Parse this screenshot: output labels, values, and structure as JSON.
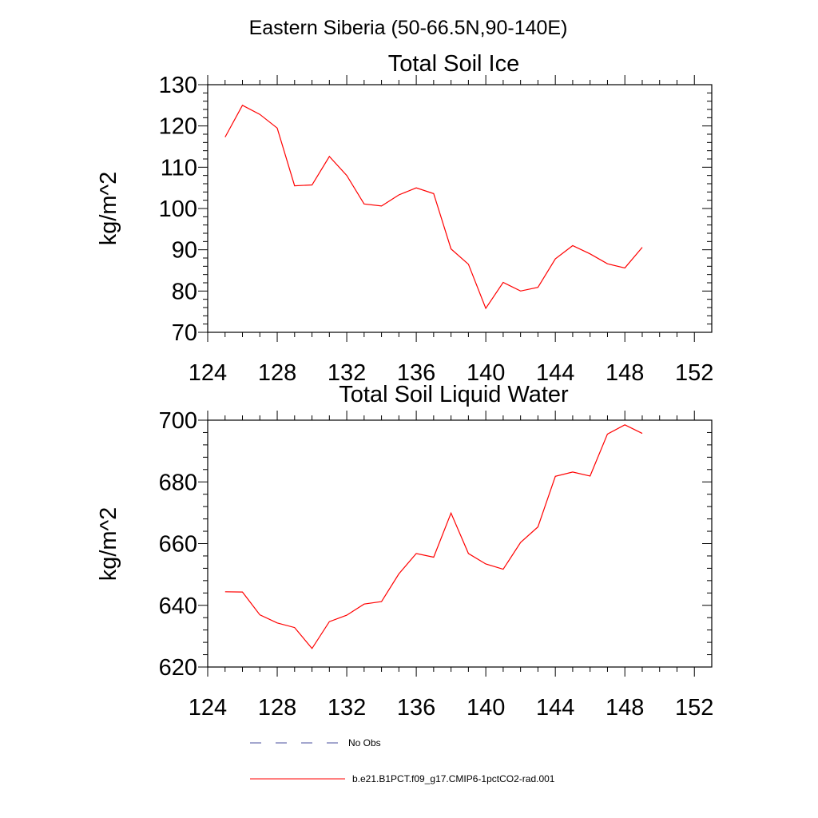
{
  "figure": {
    "suptitle": "Eastern Siberia (50-66.5N,90-140E)"
  },
  "chart_data": [
    {
      "type": "line",
      "title": "Total Soil Ice",
      "xlabel": "",
      "ylabel": "kg/m^2",
      "xlim": [
        124,
        153
      ],
      "ylim": [
        70,
        130
      ],
      "xticks": [
        124,
        128,
        132,
        136,
        140,
        144,
        148,
        152
      ],
      "yticks": [
        70,
        80,
        90,
        100,
        110,
        120,
        130
      ],
      "grid": false,
      "series": [
        {
          "name": "b.e21.B1PCT.f09_g17.CMIP6-1pctCO2-rad.001",
          "color": "#ff0000",
          "x": [
            125,
            126,
            127,
            128,
            129,
            130,
            131,
            132,
            133,
            134,
            135,
            136,
            137,
            138,
            139,
            140,
            141,
            142,
            143,
            144,
            145,
            146,
            147,
            148,
            149
          ],
          "values": [
            117.3,
            125.0,
            122.8,
            119.5,
            105.5,
            105.7,
            112.6,
            108.0,
            101.1,
            100.6,
            103.3,
            105.0,
            103.6,
            90.2,
            86.5,
            75.8,
            82.1,
            80.0,
            80.9,
            87.8,
            91.0,
            89.0,
            86.6,
            85.6,
            90.6
          ]
        }
      ]
    },
    {
      "type": "line",
      "title": "Total Soil Liquid Water",
      "xlabel": "",
      "ylabel": "kg/m^2",
      "xlim": [
        124,
        153
      ],
      "ylim": [
        620,
        700
      ],
      "xticks": [
        124,
        128,
        132,
        136,
        140,
        144,
        148,
        152
      ],
      "yticks": [
        620,
        640,
        660,
        680,
        700
      ],
      "grid": false,
      "series": [
        {
          "name": "b.e21.B1PCT.f09_g17.CMIP6-1pctCO2-rad.001",
          "color": "#ff0000",
          "x": [
            125,
            126,
            127,
            128,
            129,
            130,
            131,
            132,
            133,
            134,
            135,
            136,
            137,
            138,
            139,
            140,
            141,
            142,
            143,
            144,
            145,
            146,
            147,
            148,
            149
          ],
          "values": [
            644.4,
            644.3,
            636.9,
            634.3,
            632.8,
            626.0,
            634.7,
            636.8,
            640.4,
            641.2,
            650.2,
            656.8,
            655.6,
            669.9,
            656.8,
            653.4,
            651.7,
            660.4,
            665.4,
            681.8,
            683.2,
            681.9,
            695.5,
            698.5,
            695.7
          ]
        }
      ]
    }
  ],
  "legend": {
    "placement": "bottom",
    "items": [
      {
        "label": "No Obs",
        "color": "#4a4f9c",
        "style": "dashed"
      },
      {
        "label": "b.e21.B1PCT.f09_g17.CMIP6-1pctCO2-rad.001",
        "color": "#ff0000",
        "style": "solid"
      }
    ]
  }
}
